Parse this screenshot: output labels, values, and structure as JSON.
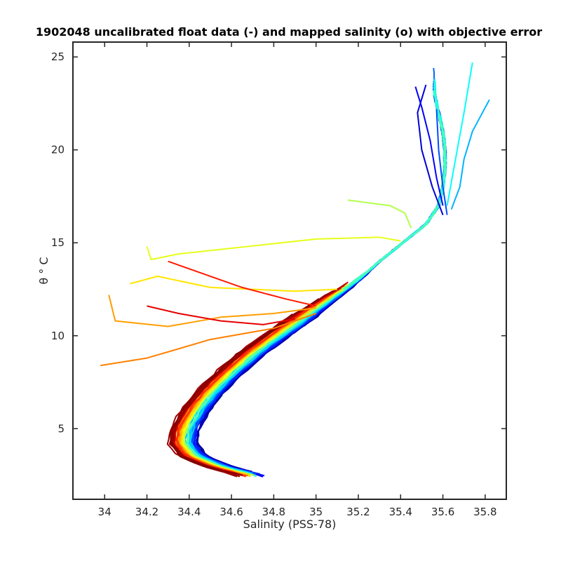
{
  "chart_data": {
    "type": "line",
    "title": "1902048 uncalibrated float data (-) and mapped salinity (o) with objective error",
    "xlabel": "Salinity (PSS-78)",
    "ylabel": "θ ° C",
    "xlim": [
      33.85,
      35.9
    ],
    "ylim": [
      1.2,
      25.8
    ],
    "xticks": [
      "34",
      "34.2",
      "34.4",
      "34.6",
      "34.8",
      "35",
      "35.2",
      "35.4",
      "35.6",
      "35.8"
    ],
    "yticks": [
      "5",
      "10",
      "15",
      "20",
      "25"
    ],
    "grid": false,
    "colormap": "jet",
    "colors": [
      "#00008f",
      "#0000ff",
      "#0080ff",
      "#00ffff",
      "#80ff80",
      "#ffff00",
      "#ff8000",
      "#ff0000",
      "#800000"
    ],
    "mapped_salinity_marker": "o",
    "series_description": "profiles colored by cycle number (jet colormap); ~100 overlapping theta-S profiles",
    "base_curve": {
      "theta": [
        2.5,
        2.9,
        3.5,
        4.2,
        5.0,
        6.0,
        7.0,
        8.0,
        9.0,
        10.0,
        10.7,
        11.3,
        12.0,
        13.0,
        14.0,
        15.0,
        16.0,
        17.0,
        18.0,
        19.0,
        20.0,
        21.0,
        22.0,
        23.0
      ],
      "salinity": [
        34.7,
        34.55,
        34.42,
        34.37,
        34.38,
        34.43,
        34.5,
        34.59,
        34.69,
        34.81,
        34.9,
        34.97,
        35.06,
        35.19,
        35.3,
        35.41,
        35.52,
        35.58,
        35.6,
        35.61,
        35.61,
        35.6,
        35.58,
        35.56
      ]
    },
    "shallow_profiles": [
      {
        "cycle_frac": 0.08,
        "salinity": [
          35.52,
          35.48,
          35.5,
          35.55,
          35.6
        ],
        "theta": [
          23.5,
          22.0,
          20.0,
          18.0,
          16.5
        ]
      },
      {
        "cycle_frac": 0.12,
        "salinity": [
          35.47,
          35.5,
          35.54,
          35.57,
          35.6
        ],
        "theta": [
          23.4,
          22.3,
          20.5,
          18.5,
          17.0
        ]
      },
      {
        "cycle_frac": 0.2,
        "salinity": [
          35.57,
          35.58,
          35.6,
          35.62
        ],
        "theta": [
          22.2,
          20.0,
          18.0,
          16.5
        ]
      },
      {
        "cycle_frac": 0.3,
        "salinity": [
          35.82,
          35.74,
          35.7,
          35.68,
          35.64
        ],
        "theta": [
          22.7,
          21.0,
          19.5,
          18.0,
          16.8
        ]
      },
      {
        "cycle_frac": 0.38,
        "salinity": [
          35.74,
          35.7,
          35.66,
          35.62
        ],
        "theta": [
          24.7,
          22.0,
          19.5,
          17.0
        ]
      },
      {
        "cycle_frac": 0.55,
        "salinity": [
          35.15,
          35.35,
          35.42,
          35.45
        ],
        "theta": [
          17.3,
          17.0,
          16.6,
          15.8
        ]
      },
      {
        "cycle_frac": 0.6,
        "salinity": [
          34.2,
          34.22,
          34.35,
          35.0,
          35.3,
          35.4
        ],
        "theta": [
          14.8,
          14.1,
          14.4,
          15.2,
          15.3,
          15.1
        ]
      },
      {
        "cycle_frac": 0.65,
        "salinity": [
          34.12,
          34.25,
          34.5,
          34.9,
          35.1
        ],
        "theta": [
          12.8,
          13.2,
          12.6,
          12.4,
          12.5
        ]
      },
      {
        "cycle_frac": 0.72,
        "salinity": [
          34.02,
          34.05,
          34.3,
          34.55,
          34.8,
          35.0
        ],
        "theta": [
          12.2,
          10.8,
          10.5,
          11.0,
          11.2,
          11.5
        ]
      },
      {
        "cycle_frac": 0.75,
        "salinity": [
          33.98,
          34.2,
          34.5,
          34.8,
          35.0
        ],
        "theta": [
          8.4,
          8.8,
          9.8,
          10.4,
          11.2
        ]
      },
      {
        "cycle_frac": 0.85,
        "salinity": [
          34.3,
          34.45,
          34.55,
          34.65,
          34.85,
          35.0
        ],
        "theta": [
          14.0,
          13.4,
          13.0,
          12.6,
          12.0,
          11.6
        ]
      },
      {
        "cycle_frac": 0.9,
        "salinity": [
          34.2,
          34.35,
          34.55,
          34.75,
          34.9
        ],
        "theta": [
          11.6,
          11.2,
          10.8,
          10.6,
          10.9
        ]
      }
    ]
  }
}
